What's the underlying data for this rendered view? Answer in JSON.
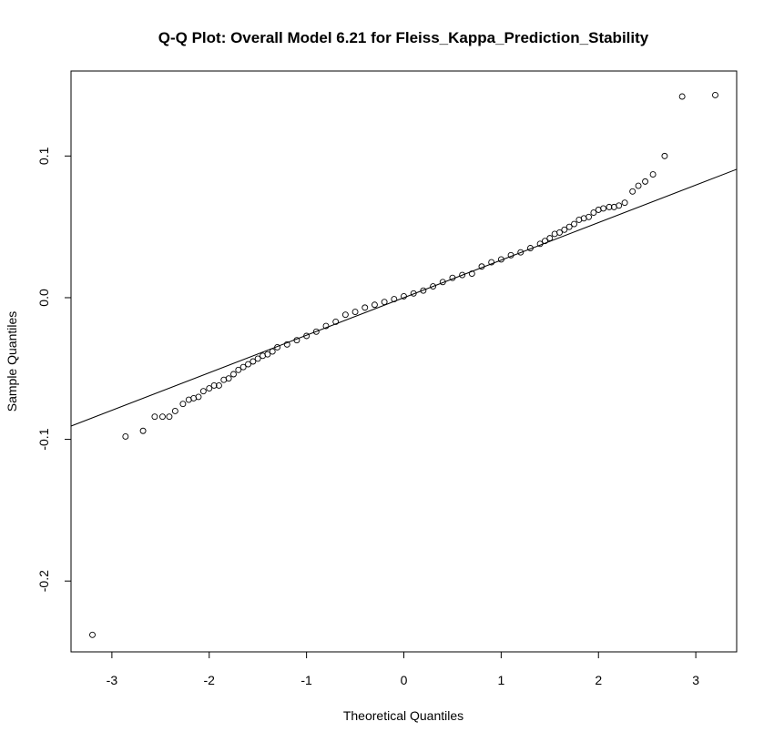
{
  "chart_data": {
    "type": "scatter",
    "title": "Q-Q Plot: Overall Model 6.21 for Fleiss_Kappa_Prediction_Stability",
    "xlabel": "Theoretical Quantiles",
    "ylabel": "Sample Quantiles",
    "xlim": [
      -3.42,
      3.42
    ],
    "ylim": [
      -0.25,
      0.16
    ],
    "x_ticks": [
      {
        "value": -3,
        "label": "-3"
      },
      {
        "value": -2,
        "label": "-2"
      },
      {
        "value": -1,
        "label": "-1"
      },
      {
        "value": 0,
        "label": "0"
      },
      {
        "value": 1,
        "label": "1"
      },
      {
        "value": 2,
        "label": "2"
      },
      {
        "value": 3,
        "label": "3"
      }
    ],
    "y_ticks": [
      {
        "value": -0.2,
        "label": "-0.2"
      },
      {
        "value": -0.1,
        "label": "-0.1"
      },
      {
        "value": 0.0,
        "label": "0.0"
      },
      {
        "value": 0.1,
        "label": "0.1"
      }
    ],
    "reference_line": {
      "intercept": 0.0,
      "slope": 0.0265
    },
    "points": {
      "x": [
        -3.2,
        -2.86,
        -2.68,
        -2.56,
        -2.48,
        -2.41,
        -2.35,
        -2.27,
        -2.21,
        -2.16,
        -2.11,
        -2.06,
        -2.0,
        -1.95,
        -1.9,
        -1.85,
        -1.8,
        -1.75,
        -1.7,
        -1.65,
        -1.6,
        -1.55,
        -1.5,
        -1.45,
        -1.4,
        -1.35,
        -1.3,
        -1.2,
        -1.1,
        -1.0,
        -0.9,
        -0.8,
        -0.7,
        -0.6,
        -0.5,
        -0.4,
        -0.3,
        -0.2,
        -0.1,
        0.0,
        0.1,
        0.2,
        0.3,
        0.4,
        0.5,
        0.6,
        0.7,
        0.8,
        0.9,
        1.0,
        1.1,
        1.2,
        1.3,
        1.4,
        1.45,
        1.5,
        1.55,
        1.6,
        1.65,
        1.7,
        1.75,
        1.8,
        1.85,
        1.9,
        1.95,
        2.0,
        2.05,
        2.11,
        2.16,
        2.21,
        2.27,
        2.35,
        2.41,
        2.48,
        2.56,
        2.68,
        2.86,
        3.2
      ],
      "y": [
        -0.238,
        -0.098,
        -0.094,
        -0.084,
        -0.084,
        -0.084,
        -0.08,
        -0.075,
        -0.072,
        -0.071,
        -0.07,
        -0.066,
        -0.064,
        -0.062,
        -0.062,
        -0.058,
        -0.057,
        -0.054,
        -0.051,
        -0.049,
        -0.047,
        -0.045,
        -0.043,
        -0.041,
        -0.04,
        -0.038,
        -0.035,
        -0.033,
        -0.03,
        -0.027,
        -0.024,
        -0.02,
        -0.017,
        -0.012,
        -0.01,
        -0.007,
        -0.005,
        -0.003,
        -0.001,
        0.001,
        0.003,
        0.005,
        0.008,
        0.011,
        0.014,
        0.016,
        0.017,
        0.022,
        0.025,
        0.027,
        0.03,
        0.032,
        0.035,
        0.038,
        0.04,
        0.042,
        0.045,
        0.046,
        0.048,
        0.05,
        0.052,
        0.055,
        0.056,
        0.057,
        0.06,
        0.062,
        0.063,
        0.064,
        0.064,
        0.065,
        0.067,
        0.075,
        0.079,
        0.082,
        0.087,
        0.1,
        0.142,
        0.143
      ]
    }
  }
}
